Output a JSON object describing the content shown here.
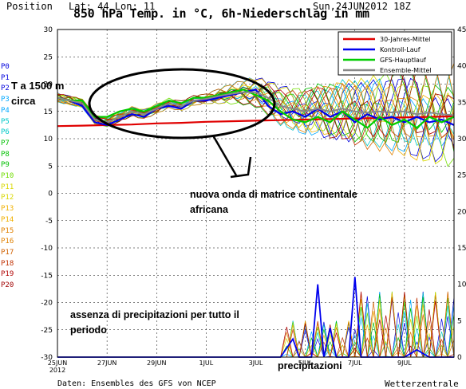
{
  "header": {
    "position": "Position",
    "lat_lon": "Lat: 44  Lon: 11",
    "date": "Sun,24JUN2012 18Z",
    "title": "850 hPa Temp. in °C, 6h-Niederschlag in mm"
  },
  "footer": {
    "source": "Daten: Ensembles des GFS von NCEP",
    "brand": "Wetterzentrale"
  },
  "members": [
    "P0",
    "P1",
    "P2",
    "P3",
    "P4",
    "P5",
    "P6",
    "P7",
    "P8",
    "P9",
    "P10",
    "P11",
    "P12",
    "P13",
    "P14",
    "P15",
    "P16",
    "P17",
    "P18",
    "P19",
    "P20"
  ],
  "member_colors": [
    "#0000dd",
    "#0000dd",
    "#0000dd",
    "#00a8ff",
    "#00a8ff",
    "#00c8c8",
    "#00c8c8",
    "#00c000",
    "#00c000",
    "#00c000",
    "#70dd00",
    "#d8d800",
    "#d8d800",
    "#f0b000",
    "#f0b000",
    "#e08000",
    "#e08000",
    "#d06000",
    "#c03000",
    "#b00000",
    "#a00000"
  ],
  "annotations": {
    "t1500": "T a 1500 m",
    "circa": "circa",
    "wave": "nuova onda di matrice continentale",
    "wave2": "africana",
    "noprecip": "assenza di precipitazioni per tutto il",
    "noprecip2": "periodo",
    "precip": "precipitazioni"
  },
  "chart_data": {
    "type": "line",
    "title": "850 hPa Temp. in °C, 6h-Niederschlag in mm",
    "x_ticks": [
      "25JUN\n2012",
      "27JUN",
      "29JUN",
      "1JUL",
      "3JUL",
      "5JUL",
      "7JUL",
      "9JUL"
    ],
    "y_left_ticks": [
      30,
      25,
      20,
      15,
      10,
      5,
      0,
      -5,
      -10,
      -15,
      -20,
      -25,
      -30
    ],
    "y_left_range": [
      -30,
      30
    ],
    "y_left_unit": "°C",
    "y_right_ticks": [
      45,
      40,
      35,
      30,
      25,
      20,
      15,
      10,
      5,
      0
    ],
    "y_right_range": [
      0,
      45
    ],
    "y_right_unit": "mm",
    "legend_position": "top-right",
    "series": [
      {
        "name": "30-Jahres-Mittel",
        "color": "#e00000",
        "days": [
          0,
          1,
          2,
          3,
          4,
          5,
          6,
          7,
          8,
          9,
          10,
          11,
          12,
          13,
          14,
          15,
          16
        ],
        "values": [
          12.3,
          12.4,
          12.5,
          12.6,
          12.8,
          12.9,
          13.1,
          13.2,
          13.3,
          13.4,
          13.5,
          13.6,
          13.7,
          13.8,
          13.9,
          14.0,
          14.1
        ]
      },
      {
        "name": "Kontroll-Lauf",
        "color": "#0000ee",
        "days": [
          0,
          0.5,
          1,
          1.5,
          2,
          2.5,
          3,
          3.5,
          4,
          4.5,
          5,
          5.5,
          6,
          6.5,
          7,
          7.5,
          8,
          8.5,
          9,
          9.5,
          10,
          10.5,
          11,
          11.5,
          12,
          12.5,
          13,
          13.5,
          14,
          14.5,
          15,
          15.5,
          16
        ],
        "values": [
          17.5,
          17,
          16,
          13,
          12.5,
          13.5,
          14.5,
          14,
          15.5,
          16,
          15.5,
          17,
          17,
          17.5,
          18,
          18.5,
          19,
          16,
          14.5,
          15,
          14,
          15.5,
          14,
          15,
          13,
          14.5,
          13.5,
          14,
          13,
          14,
          13,
          13.5,
          12.5
        ]
      },
      {
        "name": "GFS-Hauptlauf",
        "color": "#00cc00",
        "days": [
          0,
          0.5,
          1,
          1.5,
          2,
          2.5,
          3,
          3.5,
          4,
          4.5,
          5,
          5.5,
          6,
          6.5,
          7,
          7.5,
          8,
          8.5,
          9,
          9.5,
          10,
          10.5,
          11,
          11.5,
          12,
          12.5,
          13,
          13.5,
          14,
          14.5,
          15,
          15.5,
          16
        ],
        "values": [
          17.5,
          17,
          17,
          14,
          14,
          15,
          15.5,
          15,
          16,
          17,
          16.5,
          17.5,
          17.5,
          18,
          18.5,
          19,
          18,
          17,
          15,
          13.5,
          13,
          14,
          13,
          15,
          13.5,
          12,
          14,
          12.5,
          13.5,
          12,
          14,
          13,
          14
        ]
      },
      {
        "name": "Ensemble-Mittel",
        "color": "#888888",
        "days": [
          0,
          0.5,
          1,
          1.5,
          2,
          2.5,
          3,
          3.5,
          4,
          4.5,
          5,
          5.5,
          6,
          6.5,
          7,
          7.5,
          8,
          8.5,
          9,
          9.5,
          10,
          10.5,
          11,
          11.5,
          12,
          12.5,
          13,
          13.5,
          14,
          14.5,
          15,
          15.5,
          16
        ],
        "values": [
          17.5,
          17,
          16.5,
          13.5,
          13,
          14,
          15,
          14.5,
          15.5,
          16.5,
          16,
          17,
          17.3,
          17.8,
          18.2,
          18.5,
          18.5,
          17.5,
          16,
          15.5,
          15,
          15.5,
          15,
          15.5,
          15,
          14.8,
          15,
          14.8,
          15,
          14.5,
          14.8,
          14.5,
          14.3
        ]
      }
    ],
    "precip_series": [
      {
        "name": "Kontroll-Lauf",
        "color": "#0000ee",
        "days": [
          0,
          6,
          7,
          7.25,
          7.5,
          7.75,
          8,
          9,
          9.5,
          9.75,
          10,
          10.25,
          10.5,
          10.75,
          11,
          11.25,
          11.5,
          11.75,
          12,
          12.25,
          12.5,
          12.75,
          13,
          13.25,
          13.5,
          13.75,
          14,
          14.5,
          15,
          16
        ],
        "values": [
          0,
          0,
          0,
          0,
          0,
          0,
          0,
          0,
          2.5,
          0,
          0,
          0,
          10,
          0,
          4,
          0,
          0,
          0,
          11,
          0,
          0,
          0,
          0,
          0,
          0,
          0,
          0,
          1,
          0,
          0
        ]
      }
    ]
  }
}
